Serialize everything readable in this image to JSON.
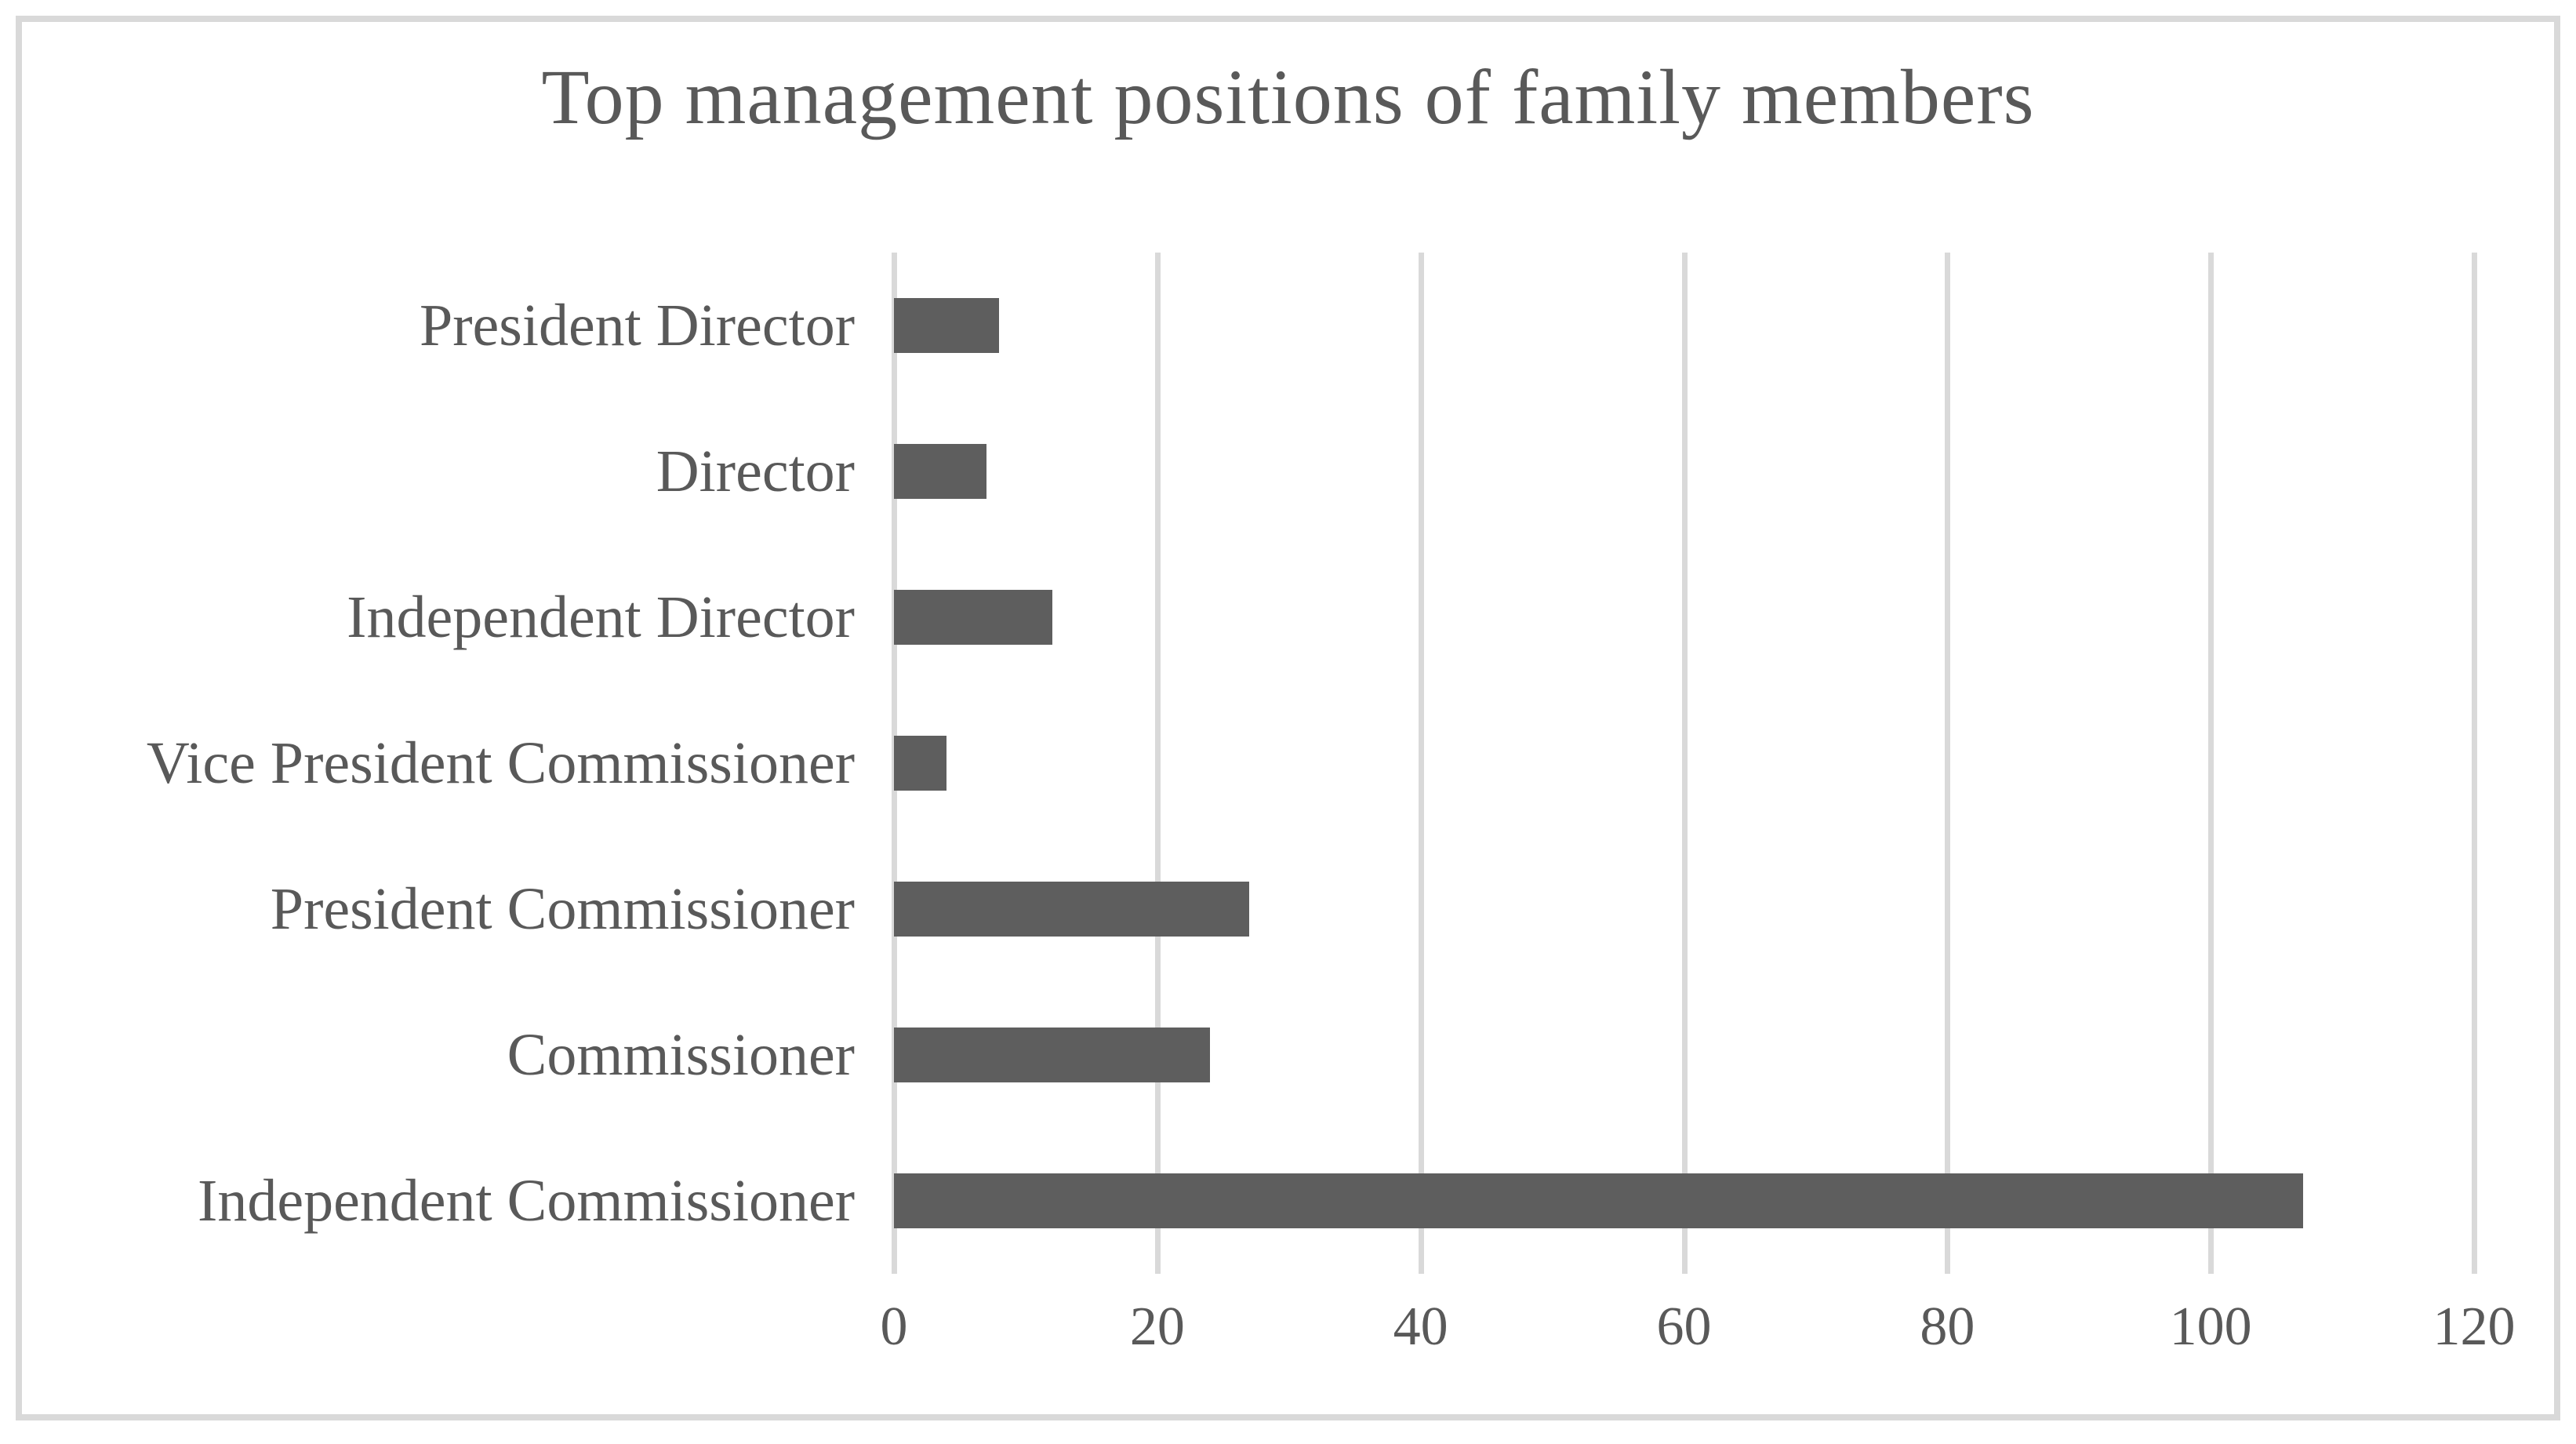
{
  "figure": {
    "title": "Top management positions of family members"
  },
  "colors": {
    "background": "#ffffff",
    "frame_border": "#d9d9d9",
    "gridline": "#d9d9d9",
    "bar": "#5e5e5e",
    "text": "#595959"
  },
  "chart_data": {
    "type": "bar",
    "orientation": "horizontal",
    "title": "Top management positions of family members",
    "categories": [
      "President Director",
      "Director",
      "Independent Director",
      "Vice President Commissioner",
      "President Commissioner",
      "Commissioner",
      "Independent Commissioner"
    ],
    "values": [
      8,
      7,
      12,
      4,
      27,
      24,
      107
    ],
    "xlabel": "",
    "ylabel": "",
    "xlim": [
      0,
      120
    ],
    "xticks": [
      0,
      20,
      40,
      60,
      80,
      100,
      120
    ],
    "grid": true,
    "legend": false,
    "bar_color": "#5e5e5e"
  }
}
